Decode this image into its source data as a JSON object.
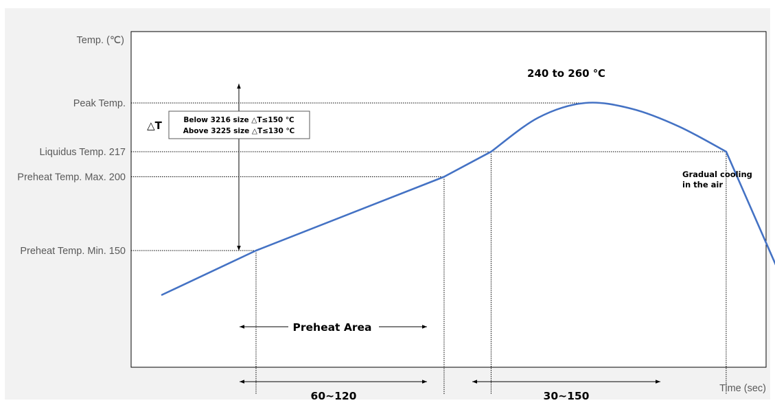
{
  "chart_data": {
    "type": "line",
    "ylabel": "Temp. (℃)",
    "xlabel": "Time (sec)",
    "y_levels": [
      {
        "label": "Peak Temp.",
        "value": 250
      },
      {
        "label": "Liquidus Temp. 217",
        "value": 217
      },
      {
        "label": "Preheat Temp. Max. 200",
        "value": 200
      },
      {
        "label": "Preheat Temp. Min. 150",
        "value": 150
      }
    ],
    "series": [
      {
        "points": [
          {
            "x": 0,
            "y": 120
          },
          {
            "x": 60,
            "y": 150
          },
          {
            "x": 180,
            "y": 200
          },
          {
            "x": 210,
            "y": 217
          },
          {
            "x": 240,
            "y": 240
          },
          {
            "x": 270,
            "y": 250
          },
          {
            "x": 300,
            "y": 246
          },
          {
            "x": 330,
            "y": 234
          },
          {
            "x": 360,
            "y": 217
          },
          {
            "x": 400,
            "y": 120
          }
        ]
      }
    ],
    "annotations": {
      "peak_label": "240 to 260 ℃",
      "delta_t": "△T",
      "box_lines": [
        "Below 3216 size △T≤150 ℃",
        "Above 3225 size △T≤130 ℃"
      ],
      "preheat_area": "Preheat Area",
      "preheat_duration": "60~120",
      "liquidus_duration": "30~150",
      "cooling_lines": [
        "Gradual cooling",
        "in the air"
      ]
    },
    "grid": false,
    "legend": "none"
  },
  "colors": {
    "curve": "#4472c4",
    "panel_bg": "#f2f2f2",
    "axis": "#000000",
    "label": "#595959"
  }
}
